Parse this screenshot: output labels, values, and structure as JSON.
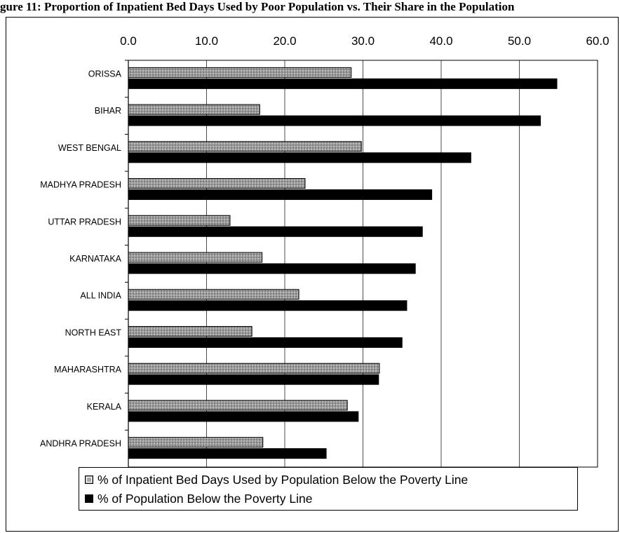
{
  "heading": "gure 11: Proportion of Inpatient Bed Days Used by Poor Population vs. Their Share in the Population",
  "chart_data": {
    "type": "bar",
    "orientation": "horizontal",
    "categories": [
      "ORISSA",
      "BIHAR",
      "WEST BENGAL",
      "MADHYA PRADESH",
      "UTTAR PRADESH",
      "KARNATAKA",
      "ALL INDIA",
      "NORTH EAST",
      "MAHARASHTRA",
      "KERALA",
      "ANDHRA PRADESH"
    ],
    "series": [
      {
        "name": "% of Inpatient Bed Days Used by Population Below the Poverty Line",
        "values": [
          28.5,
          16.8,
          29.8,
          22.6,
          13.0,
          17.1,
          21.8,
          15.8,
          32.1,
          28.0,
          17.2
        ],
        "color": "#a8a8a8"
      },
      {
        "name": "% of Population Below the Poverty Line",
        "values": [
          54.8,
          52.7,
          43.8,
          38.8,
          37.6,
          36.7,
          35.6,
          35.0,
          32.0,
          29.4,
          25.3
        ],
        "color": "#000000"
      }
    ],
    "xlim": [
      0,
      60
    ],
    "xticks": [
      "0.0",
      "10.0",
      "20.0",
      "30.0",
      "40.0",
      "50.0",
      "60.0"
    ],
    "xaxis_position": "top",
    "grid": true,
    "legend_position": "bottom"
  }
}
